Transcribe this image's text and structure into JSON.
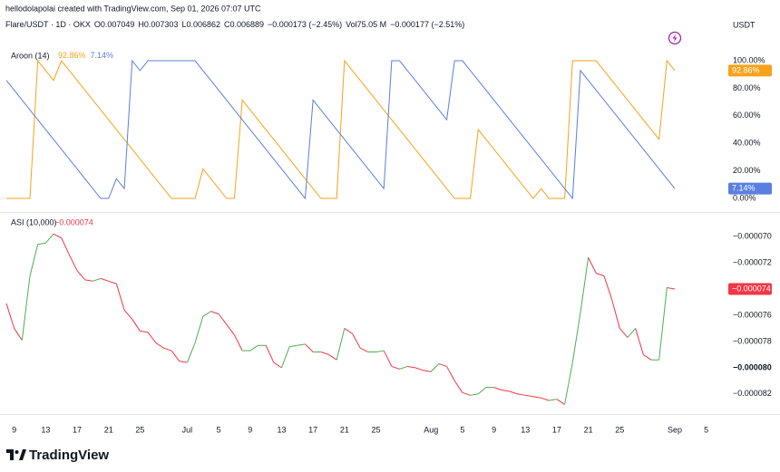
{
  "header": {
    "credit": "hellodolapolai created with TradingView.com, Sep 01, 2026 07:07 UTC",
    "symbol": "Flare/USDT · 1D · OKX",
    "quote": [
      "O0.007049",
      "H0.007303",
      "L0.006862",
      "C0.006889",
      "−0.000173 (−2.45%)",
      "Vol75.05 M",
      "−0.000177 (−2.51%)"
    ],
    "currency": "USDT"
  },
  "footer": {
    "brand": "TradingView"
  },
  "chart_data": [
    {
      "type": "line",
      "title": "Aroon (14)",
      "categories": [
        null,
        "9",
        null,
        null,
        null,
        "13",
        null,
        null,
        null,
        "17",
        null,
        null,
        null,
        "21",
        null,
        null,
        null,
        "25",
        null,
        null,
        null,
        null,
        null,
        "Jul",
        null,
        null,
        null,
        "5",
        null,
        null,
        null,
        "9",
        null,
        null,
        null,
        "13",
        null,
        null,
        null,
        "17",
        null,
        null,
        null,
        "21",
        null,
        null,
        null,
        "25",
        null,
        null,
        null,
        null,
        null,
        null,
        "Aug",
        null,
        null,
        null,
        "5",
        null,
        null,
        null,
        "9",
        null,
        null,
        null,
        "13",
        null,
        null,
        null,
        "17",
        null,
        null,
        null,
        "21",
        null,
        null,
        null,
        "25",
        null,
        null,
        null,
        null,
        null,
        null,
        "Sep",
        null,
        null,
        null,
        "5"
      ],
      "series": [
        {
          "color": "#f7a21b",
          "last_value_label": "92.86%",
          "values": [
            0,
            0,
            0,
            0,
            100,
            92.86,
            85.71,
            100,
            92.86,
            85.71,
            78.57,
            71.43,
            64.29,
            57.14,
            50,
            42.86,
            35.71,
            28.57,
            21.43,
            14.29,
            7.14,
            0,
            0,
            0,
            0,
            21.43,
            14.29,
            7.14,
            0,
            0,
            71.43,
            64.29,
            57.14,
            50,
            42.86,
            35.71,
            28.57,
            21.43,
            14.29,
            7.14,
            0,
            0,
            0,
            100,
            92.86,
            85.71,
            78.57,
            71.43,
            64.29,
            57.14,
            50,
            42.86,
            35.71,
            28.57,
            21.43,
            14.29,
            7.14,
            0,
            0,
            0,
            50,
            42.86,
            35.71,
            28.57,
            21.43,
            14.29,
            7.14,
            0,
            7.14,
            0,
            0,
            0,
            100,
            100,
            100,
            100,
            92.86,
            85.71,
            78.57,
            71.43,
            64.29,
            57.14,
            50,
            42.86,
            100,
            92.86,
            null,
            null,
            null,
            null
          ]
        },
        {
          "color": "#5b7fe0",
          "last_value_label": "7.14%",
          "values": [
            85.71,
            78.57,
            71.43,
            64.29,
            57.14,
            50,
            42.86,
            35.71,
            28.57,
            21.43,
            14.29,
            7.14,
            0,
            0,
            14.29,
            7.14,
            100,
            92.86,
            100,
            100,
            100,
            100,
            100,
            100,
            100,
            92.86,
            85.71,
            78.57,
            71.43,
            64.29,
            57.14,
            50,
            42.86,
            35.71,
            28.57,
            21.43,
            14.29,
            7.14,
            0,
            71.43,
            64.29,
            57.14,
            50,
            42.86,
            35.71,
            28.57,
            21.43,
            14.29,
            7.14,
            100,
            100,
            92.86,
            85.71,
            78.57,
            71.43,
            64.29,
            57.14,
            100,
            100,
            92.86,
            85.71,
            78.57,
            71.43,
            64.29,
            57.14,
            50,
            42.86,
            35.71,
            28.57,
            21.43,
            14.29,
            7.14,
            0,
            92.86,
            85.71,
            78.57,
            71.43,
            64.29,
            57.14,
            50,
            42.86,
            35.71,
            28.57,
            21.43,
            14.29,
            7.14,
            null,
            null,
            null,
            null
          ]
        }
      ],
      "ylim": [
        -9.2,
        111.2
      ],
      "yticks": [
        {
          "value": 100,
          "label": "100.00%"
        },
        {
          "value": 80,
          "label": "80.00%"
        },
        {
          "value": 60,
          "label": "60.00%"
        },
        {
          "value": 40,
          "label": "40.00%"
        },
        {
          "value": 20,
          "label": "20.00%"
        },
        {
          "value": 0,
          "label": "0.00%"
        }
      ],
      "grid": false
    },
    {
      "type": "direction-line",
      "title": "ASI (10,000)",
      "categories": [
        null,
        "9",
        null,
        null,
        null,
        "13",
        null,
        null,
        null,
        "17",
        null,
        null,
        null,
        "21",
        null,
        null,
        null,
        "25",
        null,
        null,
        null,
        null,
        null,
        "Jul",
        null,
        null,
        null,
        "5",
        null,
        null,
        null,
        "9",
        null,
        null,
        null,
        "13",
        null,
        null,
        null,
        "17",
        null,
        null,
        null,
        "21",
        null,
        null,
        null,
        "25",
        null,
        null,
        null,
        null,
        null,
        null,
        "Aug",
        null,
        null,
        null,
        "5",
        null,
        null,
        null,
        "9",
        null,
        null,
        null,
        "13",
        null,
        null,
        null,
        "17",
        null,
        null,
        null,
        "21",
        null,
        null,
        null,
        "25",
        null,
        null,
        null,
        null,
        null,
        null,
        "Sep",
        null,
        null,
        null,
        "5"
      ],
      "up_color": "#4caf50",
      "down_color": "#f23645",
      "last_value_label": "−0.000074",
      "values": [
        -7.51e-05,
        -7.7e-05,
        -7.79e-05,
        -7.3e-05,
        -7.06e-05,
        -7.05e-05,
        -6.98e-05,
        -7.01e-05,
        -7.14e-05,
        -7.26e-05,
        -7.33e-05,
        -7.34e-05,
        -7.32e-05,
        -7.34e-05,
        -7.36e-05,
        -7.56e-05,
        -7.63e-05,
        -7.72e-05,
        -7.73e-05,
        -7.81e-05,
        -7.85e-05,
        -7.87e-05,
        -7.95e-05,
        -7.96e-05,
        -7.81e-05,
        -7.61e-05,
        -7.57e-05,
        -7.59e-05,
        -7.67e-05,
        -7.75e-05,
        -7.87e-05,
        -7.87e-05,
        -7.83e-05,
        -7.83e-05,
        -7.96e-05,
        -8e-05,
        -7.84e-05,
        -7.83e-05,
        -7.82e-05,
        -7.88e-05,
        -7.88e-05,
        -7.9e-05,
        -7.94e-05,
        -7.7e-05,
        -7.74e-05,
        -7.85e-05,
        -7.88e-05,
        -7.88e-05,
        -7.87e-05,
        -7.99e-05,
        -8.01e-05,
        -7.99e-05,
        -8e-05,
        -8.02e-05,
        -8.03e-05,
        -7.97e-05,
        -7.99e-05,
        -8.1e-05,
        -8.19e-05,
        -8.21e-05,
        -8.2e-05,
        -8.15e-05,
        -8.15e-05,
        -8.17e-05,
        -8.18e-05,
        -8.2e-05,
        -8.21e-05,
        -8.22e-05,
        -8.23e-05,
        -8.25e-05,
        -8.24e-05,
        -8.28e-05,
        -7.96e-05,
        -7.58e-05,
        -7.16e-05,
        -7.28e-05,
        -7.3e-05,
        -7.48e-05,
        -7.7e-05,
        -7.77e-05,
        -7.7e-05,
        -7.9e-05,
        -7.94e-05,
        -7.94e-05,
        -7.39e-05,
        -7.4e-05,
        null,
        null,
        null,
        null
      ],
      "ylim": [
        -8.339e-05,
        -6.834e-05
      ],
      "yticks": [
        {
          "value": -7e-05,
          "label": "−0.000070"
        },
        {
          "value": -7.2e-05,
          "label": "−0.000072"
        },
        {
          "value": -7.6e-05,
          "label": "−0.000076"
        },
        {
          "value": -7.8e-05,
          "label": "−0.000078"
        },
        {
          "value": -8e-05,
          "label": "−0.000080"
        },
        {
          "value": -8.2e-05,
          "label": "−0.000082"
        }
      ],
      "grid": false
    }
  ]
}
